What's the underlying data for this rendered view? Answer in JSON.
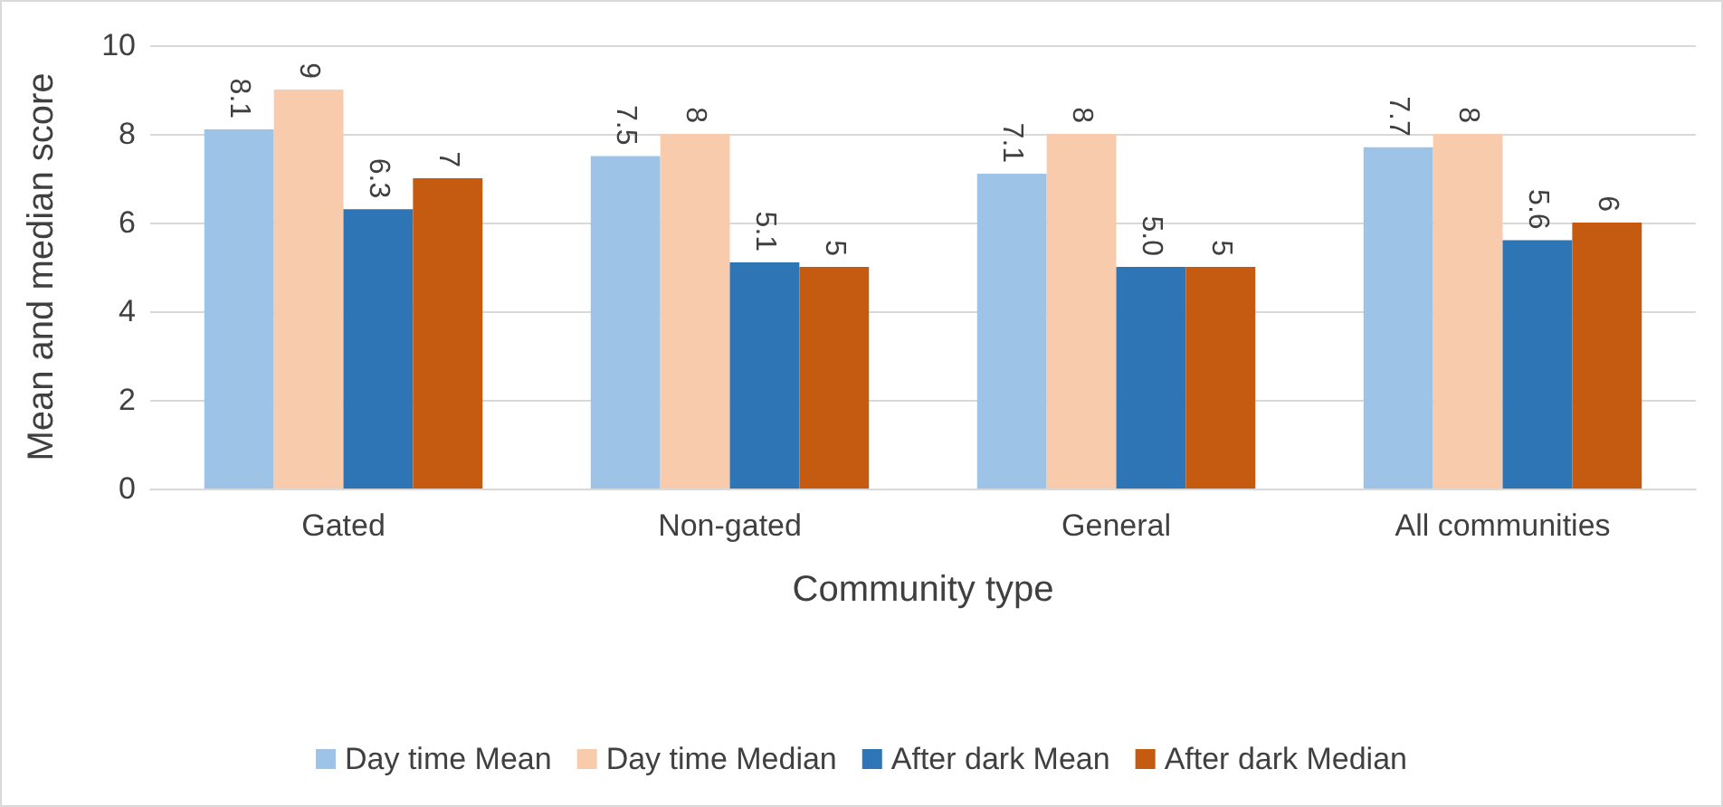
{
  "chart_data": {
    "type": "bar",
    "xlabel": "Community type",
    "ylabel": "Mean and median score",
    "categories": [
      "Gated",
      "Non-gated",
      "General",
      "All communities"
    ],
    "series": [
      {
        "name": "Day time Mean",
        "color": "#9dc3e6",
        "values": [
          8.1,
          7.5,
          7.1,
          7.7
        ],
        "value_labels": [
          "8.1",
          "7.5",
          "7.1",
          "7.7"
        ]
      },
      {
        "name": "Day time Median",
        "color": "#f8cbad",
        "values": [
          9,
          8,
          8,
          8
        ],
        "value_labels": [
          "9",
          "8",
          "8",
          "8"
        ]
      },
      {
        "name": "After dark Mean",
        "color": "#2e75b6",
        "values": [
          6.3,
          5.1,
          5.0,
          5.6
        ],
        "value_labels": [
          "6.3",
          "5.1",
          "5.0",
          "5.6"
        ]
      },
      {
        "name": "After dark Median",
        "color": "#c55a11",
        "values": [
          7,
          5,
          5,
          6
        ],
        "value_labels": [
          "7",
          "5",
          "5",
          "6"
        ]
      }
    ],
    "ylim": [
      0,
      10
    ],
    "yticks": [
      0,
      2,
      4,
      6,
      8,
      10
    ],
    "grid": "y",
    "legend": "bottom"
  }
}
